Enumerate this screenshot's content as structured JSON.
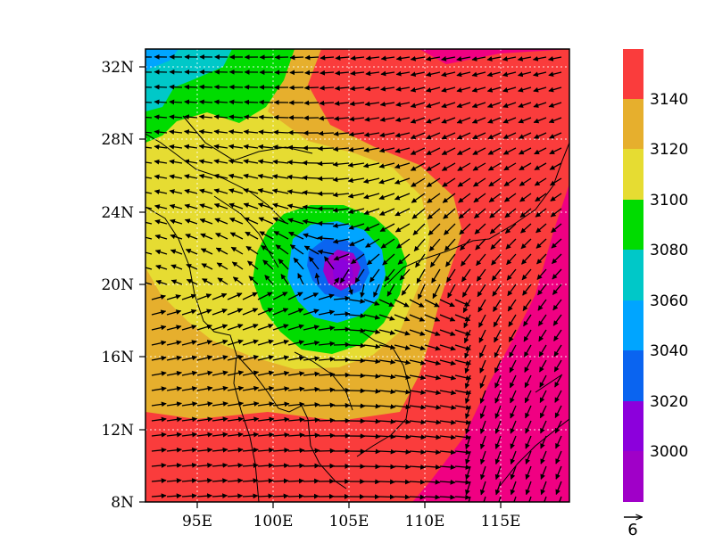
{
  "chart_data": {
    "type": "contour-vector-map",
    "field": "geopotential height contours with wind vectors",
    "lon_range": [
      91.5,
      119.5
    ],
    "lat_range": [
      8,
      33
    ],
    "x_ticks": [
      {
        "value": 95,
        "label": "95E"
      },
      {
        "value": 100,
        "label": "100E"
      },
      {
        "value": 105,
        "label": "105E"
      },
      {
        "value": 110,
        "label": "110E"
      },
      {
        "value": 115,
        "label": "115E"
      }
    ],
    "y_ticks": [
      {
        "value": 8,
        "label": "8N"
      },
      {
        "value": 12,
        "label": "12N"
      },
      {
        "value": 16,
        "label": "16N"
      },
      {
        "value": 20,
        "label": "20N"
      },
      {
        "value": 24,
        "label": "24N"
      },
      {
        "value": 28,
        "label": "28N"
      },
      {
        "value": 32,
        "label": "32N"
      }
    ],
    "grid": "dotted",
    "low_center": {
      "lon": 104.8,
      "lat": 20.7,
      "min": 2990
    },
    "colorbar": {
      "levels": [
        {
          "label": "",
          "color": "#a000c8"
        },
        {
          "label": "3000",
          "color": "#8c00dc"
        },
        {
          "label": "3020",
          "color": "#0a64f0"
        },
        {
          "label": "3040",
          "color": "#00a5ff"
        },
        {
          "label": "3060",
          "color": "#00c8c8"
        },
        {
          "label": "3080",
          "color": "#00dc00"
        },
        {
          "label": "3100",
          "color": "#e6dc32"
        },
        {
          "label": "3120",
          "color": "#e6af2d"
        },
        {
          "label": "3140",
          "color": "#fa3c3c"
        },
        {
          "label": "",
          "color": "#f00082"
        }
      ]
    },
    "reference_vector": {
      "label": "6",
      "magnitude": 6
    }
  }
}
